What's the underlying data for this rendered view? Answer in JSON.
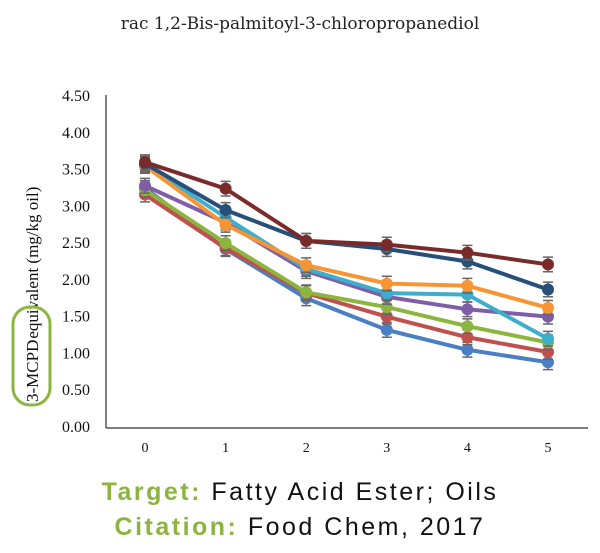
{
  "chart_data": {
    "type": "line",
    "title": "rac 1,2-Bis-palmitoyl-3-chloropropanediol",
    "xlabel": "",
    "ylabel_highlight": "3-MCPD",
    "ylabel_rest": "equivalent (mg/kg oil)",
    "ylim": [
      0,
      4.5
    ],
    "y_ticks": [
      "0.00",
      "0.50",
      "1.00",
      "1.50",
      "2.00",
      "2.50",
      "3.00",
      "3.50",
      "4.00",
      "4.50"
    ],
    "x": [
      0,
      1,
      2,
      3,
      4,
      5
    ],
    "x_ticks": [
      "0",
      "1",
      "2",
      "3",
      "4",
      "5"
    ],
    "grid": false,
    "legend": "none",
    "highlight_color": "#8cb53f",
    "series": [
      {
        "color": "#7b2a2a",
        "values": [
          3.6,
          3.24,
          2.53,
          2.48,
          2.37,
          2.21
        ]
      },
      {
        "color": "#264f7a",
        "values": [
          3.58,
          2.95,
          2.53,
          2.42,
          2.25,
          1.87
        ]
      },
      {
        "color": "#f79533",
        "values": [
          3.55,
          2.75,
          2.2,
          1.95,
          1.92,
          1.62
        ]
      },
      {
        "color": "#3daecb",
        "values": [
          3.57,
          2.85,
          2.15,
          1.82,
          1.8,
          1.2
        ]
      },
      {
        "color": "#7f5ea8",
        "values": [
          3.28,
          2.78,
          2.12,
          1.77,
          1.6,
          1.5
        ]
      },
      {
        "color": "#8cb53f",
        "values": [
          3.22,
          2.5,
          1.83,
          1.63,
          1.37,
          1.15
        ]
      },
      {
        "color": "#c0504d",
        "values": [
          3.16,
          2.43,
          1.82,
          1.5,
          1.22,
          1.02
        ]
      },
      {
        "color": "#4a7fc4",
        "values": [
          3.25,
          2.42,
          1.75,
          1.32,
          1.05,
          0.88
        ]
      }
    ]
  },
  "footer": {
    "target_label": "Target:",
    "target_value": "Fatty Acid Ester; Oils",
    "citation_label": "Citation:",
    "citation_value": "Food Chem, 2017"
  }
}
